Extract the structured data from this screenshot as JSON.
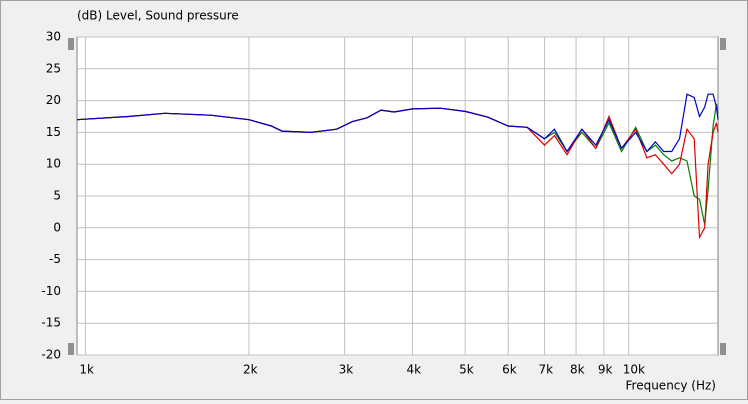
{
  "chart_data": {
    "type": "line",
    "ylabel": "(dB)  Level, Sound pressure",
    "xlabel": "Frequency  (Hz)",
    "xlog": true,
    "grid": true,
    "xlim": [
      965,
      14600
    ],
    "ylim": [
      -20,
      30
    ],
    "yticks": [
      -20,
      -15,
      -10,
      -5,
      0,
      5,
      10,
      15,
      20,
      25,
      30
    ],
    "xticks": [
      {
        "value": 1000,
        "label": "1k"
      },
      {
        "value": 2000,
        "label": "2k"
      },
      {
        "value": 3000,
        "label": "3k"
      },
      {
        "value": 4000,
        "label": "4k"
      },
      {
        "value": 5000,
        "label": "5k"
      },
      {
        "value": 6000,
        "label": "6k"
      },
      {
        "value": 7000,
        "label": "7k"
      },
      {
        "value": 8000,
        "label": "8k"
      },
      {
        "value": 9000,
        "label": "9k"
      },
      {
        "value": 10000,
        "label": "10k"
      }
    ],
    "x": [
      965,
      1200,
      1400,
      1700,
      2000,
      2200,
      2300,
      2600,
      2900,
      3100,
      3300,
      3500,
      3700,
      4000,
      4500,
      5000,
      5500,
      6000,
      6500,
      7000,
      7300,
      7700,
      8200,
      8700,
      9200,
      9700,
      10300,
      10800,
      11200,
      11600,
      12000,
      12400,
      12800,
      13200,
      13500,
      13800,
      14000,
      14300,
      14500,
      14600
    ],
    "series": [
      {
        "color": "#008000",
        "values": [
          17,
          17.5,
          18,
          17.7,
          17,
          16,
          15.2,
          15,
          15.5,
          16.7,
          17.3,
          18.5,
          18.2,
          18.7,
          18.8,
          18.3,
          17.4,
          16,
          15.8,
          14,
          15,
          12,
          15,
          12.5,
          16.5,
          12,
          15.8,
          12,
          13,
          11.5,
          10.5,
          11,
          10.5,
          5,
          4.5,
          0.5,
          6,
          16,
          19.5,
          18
        ]
      },
      {
        "color": "#e00000",
        "values": [
          17,
          17.5,
          18,
          17.7,
          17,
          16,
          15.2,
          15,
          15.5,
          16.7,
          17.3,
          18.5,
          18.2,
          18.7,
          18.8,
          18.3,
          17.4,
          16,
          15.8,
          13,
          14.5,
          11.5,
          15.5,
          12.5,
          17.5,
          12.5,
          15.5,
          11,
          11.5,
          10,
          8.5,
          10,
          15.5,
          14,
          -1.5,
          0,
          10,
          15,
          16.5,
          15
        ]
      },
      {
        "color": "#0000c8",
        "values": [
          17,
          17.5,
          18,
          17.7,
          17,
          16,
          15.2,
          15,
          15.5,
          16.7,
          17.3,
          18.5,
          18.2,
          18.7,
          18.8,
          18.3,
          17.4,
          16,
          15.8,
          14,
          15.5,
          12,
          15.5,
          13,
          17,
          12.5,
          15,
          12,
          13.5,
          12,
          12,
          14,
          21,
          20.5,
          17.5,
          19,
          21,
          21,
          19,
          17
        ]
      }
    ]
  }
}
